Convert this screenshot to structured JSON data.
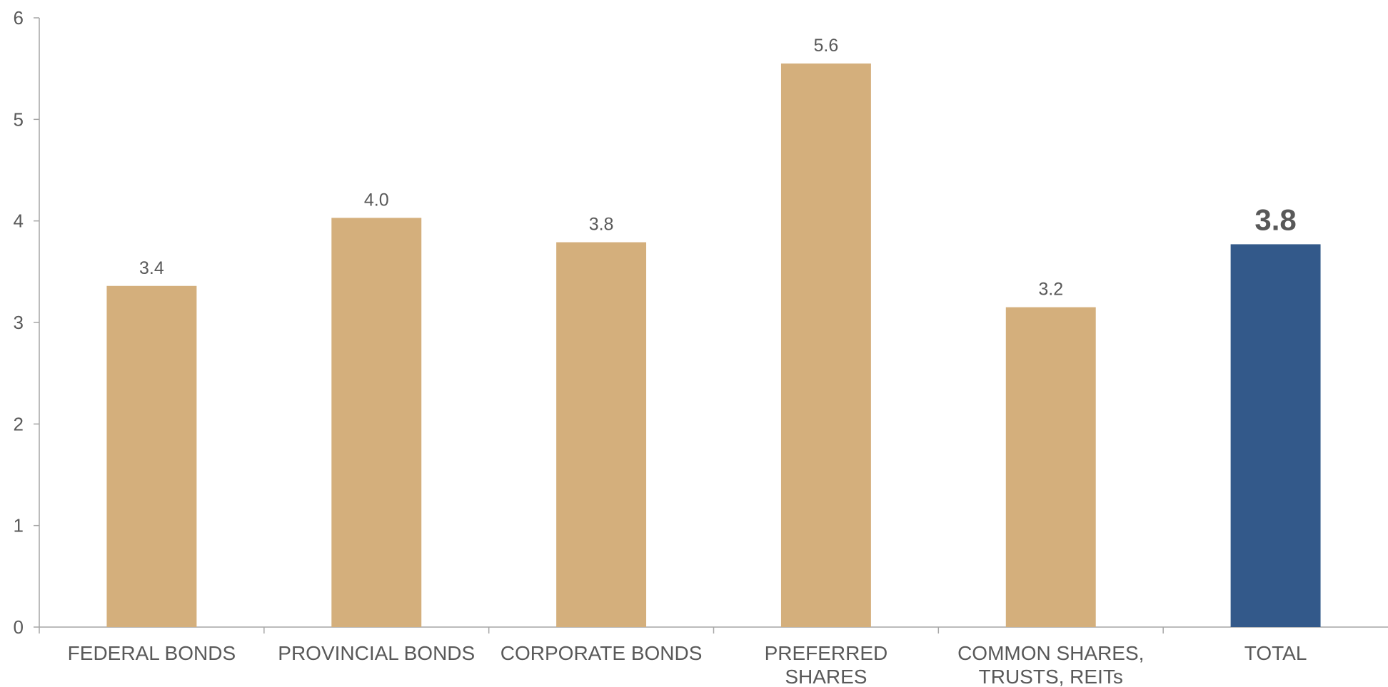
{
  "chart_data": {
    "type": "bar",
    "title": "",
    "xlabel": "",
    "ylabel": "",
    "ylim": [
      0,
      6
    ],
    "y_ticks": [
      "0",
      "1",
      "2",
      "3",
      "4",
      "5",
      "6"
    ],
    "grid": false,
    "categories": [
      [
        "FEDERAL BONDS"
      ],
      [
        "PROVINCIAL BONDS"
      ],
      [
        "CORPORATE BONDS"
      ],
      [
        "PREFERRED",
        "SHARES"
      ],
      [
        "COMMON SHARES,",
        "TRUSTS, REITs"
      ],
      [
        "TOTAL"
      ]
    ],
    "values": [
      3.36,
      4.03,
      3.79,
      5.55,
      3.15,
      3.77
    ],
    "data_labels": [
      "3.4",
      "4.0",
      "3.8",
      "5.6",
      "3.2",
      "3.8"
    ],
    "highlight_index": 5,
    "colors": {
      "bar": "#D4AF7C",
      "highlight": "#33598A",
      "axis": "#A6A6A6",
      "text": "#595959"
    }
  }
}
